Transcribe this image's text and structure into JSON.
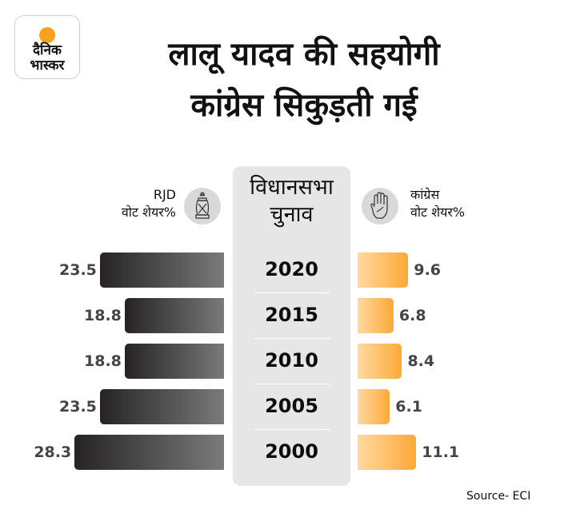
{
  "logo": {
    "line1": "दैनिक",
    "line2": "भास्कर",
    "sun_color": "#f7a21b"
  },
  "title": {
    "line1": "लालू यादव की सहयोगी",
    "line2": "कांग्रेस सिकुड़ती गई"
  },
  "center_header": {
    "line1": "विधानसभा",
    "line2": "चुनाव"
  },
  "legend": {
    "left": {
      "line1": "RJD",
      "line2": "वोट शेयर%",
      "icon": "lantern-icon"
    },
    "right": {
      "line1": "कांग्रेस",
      "line2": "वोट शेयर%",
      "icon": "hand-icon"
    }
  },
  "source": "Source- ECI",
  "chart_data": {
    "type": "bar",
    "orientation": "horizontal-butterfly",
    "title": "लालू यादव की सहयोगी कांग्रेस सिकुड़ती गई",
    "category_label": "विधानसभा चुनाव",
    "categories": [
      "2020",
      "2015",
      "2010",
      "2005",
      "2000"
    ],
    "series": [
      {
        "name": "RJD वोट शेयर%",
        "side": "left",
        "color_start": "#252323",
        "color_end": "#7a7a7a",
        "values": [
          23.5,
          18.8,
          18.8,
          23.5,
          28.3
        ]
      },
      {
        "name": "कांग्रेस वोट शेयर%",
        "side": "right",
        "color_start": "#ffd9a0",
        "color_end": "#fca937",
        "values": [
          9.6,
          6.8,
          8.4,
          6.1,
          11.1
        ]
      }
    ],
    "value_labels": {
      "left": [
        "23.5",
        "18.8",
        "18.8",
        "23.5",
        "28.3"
      ],
      "right": [
        "9.6",
        "6.8",
        "8.4",
        "6.1",
        "11.1"
      ]
    },
    "xlabel": "",
    "ylabel": "",
    "grid": false,
    "source": "Source- ECI"
  }
}
